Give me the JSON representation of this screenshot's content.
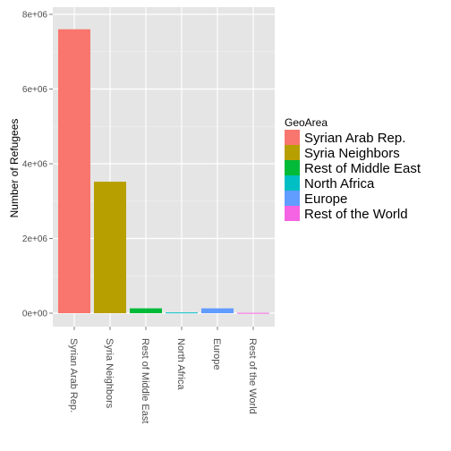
{
  "chart_data": {
    "type": "bar",
    "categories": [
      "Syrian Arab Rep.",
      "Syria Neighbors",
      "Rest of Middle East",
      "North Africa",
      "Europe",
      "Rest of the World"
    ],
    "values": [
      7600000,
      3520000,
      130000,
      20000,
      130000,
      10000
    ],
    "colors": [
      "#F8766D",
      "#B79F00",
      "#00BA38",
      "#00BFC4",
      "#619CFF",
      "#F564E3"
    ],
    "ylabel": "Number of Refugees",
    "xlabel": "",
    "ylim": [
      0,
      8000000
    ],
    "yticks": [
      0,
      2000000,
      4000000,
      6000000,
      8000000
    ],
    "ytick_labels": [
      "0e+00",
      "2e+06",
      "4e+06",
      "6e+06",
      "8e+06"
    ],
    "grid": true,
    "panel_background": "#E5E5E5",
    "legend": {
      "title": "GeoArea",
      "position": "right",
      "entries": [
        "Syrian Arab Rep.",
        "Syria Neighbors",
        "Rest of Middle East",
        "North Africa",
        "Europe",
        "Rest of the World"
      ]
    }
  }
}
